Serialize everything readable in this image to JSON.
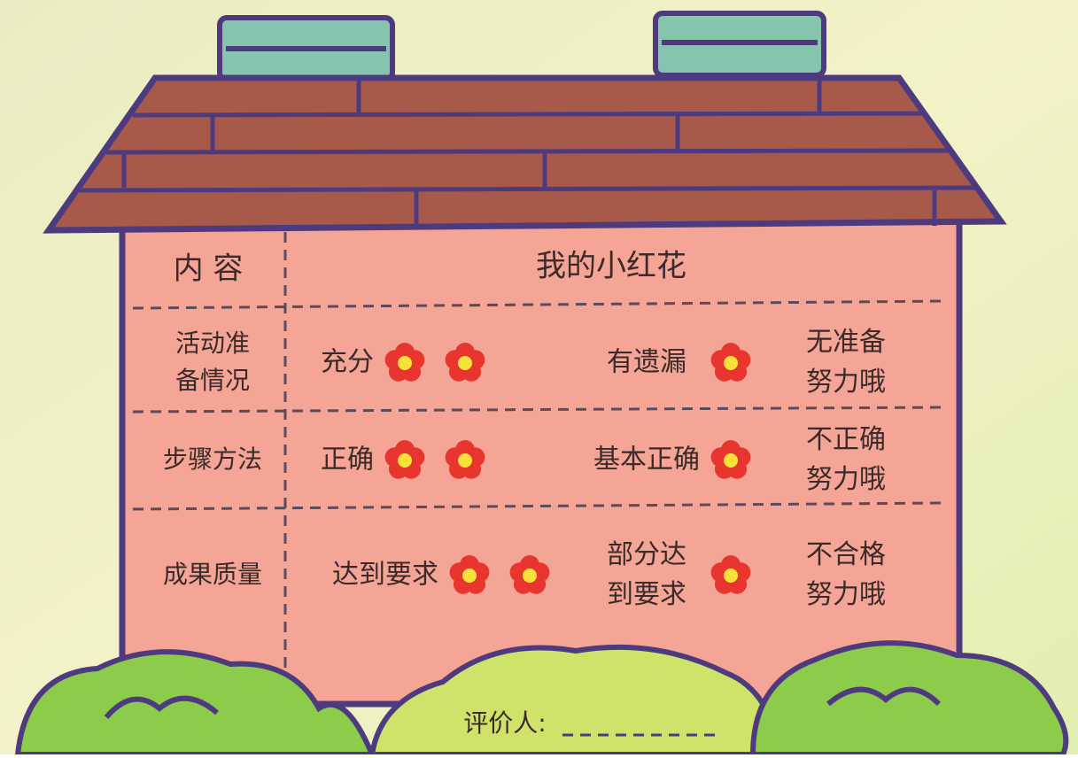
{
  "table": {
    "header": [
      "内 容",
      "我的小红花"
    ],
    "rows": [
      {
        "label": [
          "活动准",
          "备情况"
        ],
        "good": [
          "充分"
        ],
        "fair": [
          "有遗漏"
        ],
        "poor": [
          "无准备",
          "努力哦"
        ]
      },
      {
        "label": [
          "步骤方法"
        ],
        "good": [
          "正确"
        ],
        "fair": [
          "基本正确"
        ],
        "poor": [
          "不正确",
          "努力哦"
        ]
      },
      {
        "label": [
          "成果质量"
        ],
        "good": [
          "达到要求"
        ],
        "fair": [
          "部分达",
          "到要求"
        ],
        "poor": [
          "不合格",
          "努力哦"
        ]
      }
    ]
  },
  "footer": {
    "evaluator": "评价人:"
  }
}
